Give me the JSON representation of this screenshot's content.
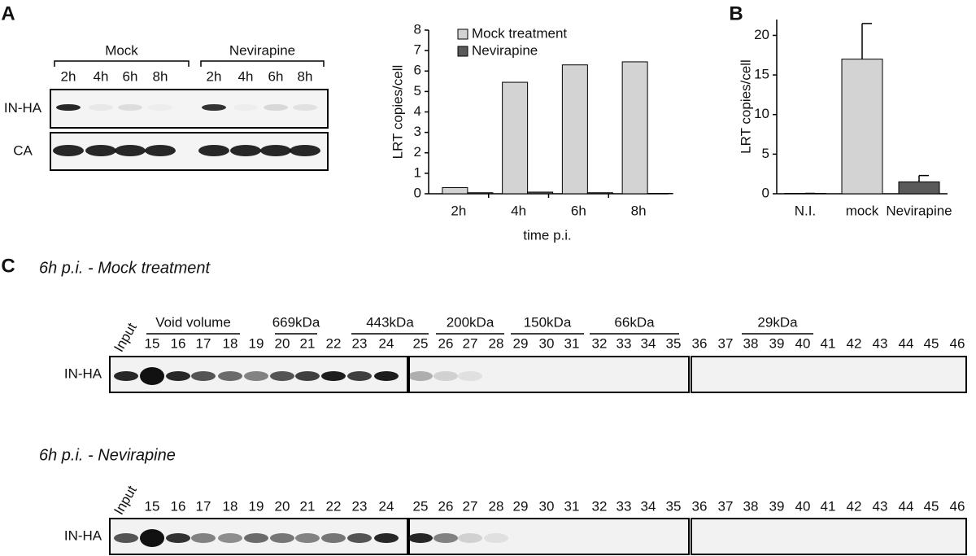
{
  "panel_labels": [
    "A",
    "B",
    "C"
  ],
  "blot_a": {
    "groups": [
      {
        "label": "Mock",
        "lanes": [
          "2h",
          "4h",
          "6h",
          "8h"
        ]
      },
      {
        "label": "Nevirapine",
        "lanes": [
          "2h",
          "4h",
          "6h",
          "8h"
        ]
      }
    ],
    "rows": [
      "IN-HA",
      "CA"
    ]
  },
  "chart_data": [
    {
      "type": "bar",
      "y_label": "LRT copies/cell",
      "x_label": "time p.i.",
      "categories": [
        "2h",
        "4h",
        "6h",
        "8h"
      ],
      "series": [
        {
          "name": "Mock treatment",
          "color": "#d3d3d3",
          "values": [
            0.3,
            5.45,
            6.3,
            6.45
          ]
        },
        {
          "name": "Nevirapine",
          "color": "#5a5a5a",
          "values": [
            0.05,
            0.08,
            0.05,
            0.02
          ]
        }
      ],
      "ylim": [
        0,
        8
      ],
      "yticks": [
        0,
        1,
        2,
        3,
        4,
        5,
        6,
        7,
        8
      ],
      "legend": "top-left"
    },
    {
      "type": "bar",
      "y_label": "LRT copies/cell",
      "categories": [
        "N.I.",
        "mock",
        "Nevirapine"
      ],
      "values": [
        0.05,
        17,
        1.5
      ],
      "errors": [
        0,
        4.5,
        0.8
      ],
      "colors": [
        "#d3d3d3",
        "#d3d3d3",
        "#5a5a5a"
      ],
      "ylim": [
        0,
        22
      ],
      "yticks": [
        0,
        5,
        10,
        15,
        20
      ]
    }
  ],
  "panel_c": {
    "markers": [
      "Void volume",
      "669kDa",
      "443kDa",
      "200kDa",
      "150kDa",
      "66kDa",
      "29kDa"
    ],
    "blots": [
      {
        "title": "6h p.i. - Mock treatment",
        "row": "IN-HA",
        "lanes": [
          "Input",
          "15",
          "16",
          "17",
          "18",
          "19",
          "20",
          "21",
          "22",
          "23",
          "24",
          "25",
          "26",
          "27",
          "28",
          "29",
          "30",
          "31",
          "32",
          "33",
          "34",
          "35",
          "36",
          "37",
          "38",
          "39",
          "40",
          "41",
          "42",
          "43",
          "44",
          "45",
          "46"
        ]
      },
      {
        "title": "6h p.i. - Nevirapine",
        "row": "IN-HA",
        "lanes": [
          "Input",
          "15",
          "16",
          "17",
          "18",
          "19",
          "20",
          "21",
          "22",
          "23",
          "24",
          "25",
          "26",
          "27",
          "28",
          "29",
          "30",
          "31",
          "32",
          "33",
          "34",
          "35",
          "36",
          "37",
          "38",
          "39",
          "40",
          "41",
          "42",
          "43",
          "44",
          "45",
          "46"
        ]
      }
    ]
  }
}
